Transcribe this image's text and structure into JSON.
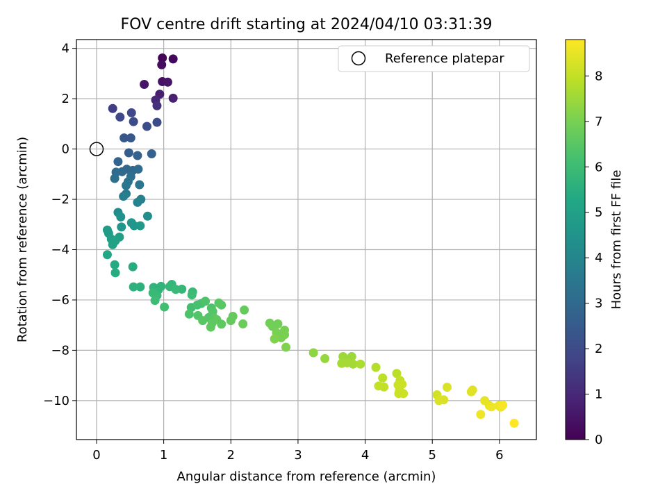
{
  "chart_data": {
    "type": "scatter",
    "title": "FOV centre drift starting at 2024/04/10 03:31:39",
    "xlabel": "Angular distance from reference (arcmin)",
    "ylabel": "Rotation from reference (arcmin)",
    "xlim": [
      -0.3,
      6.55
    ],
    "ylim": [
      -11.55,
      4.35
    ],
    "xticks": [
      0,
      1,
      2,
      3,
      4,
      5,
      6
    ],
    "yticks": [
      4,
      2,
      0,
      -2,
      -4,
      -6,
      -8,
      -10
    ],
    "xtick_labels": [
      "0",
      "1",
      "2",
      "3",
      "4",
      "5",
      "6"
    ],
    "ytick_labels": [
      "4",
      "2",
      "0",
      "−2",
      "−4",
      "−6",
      "−8",
      "−10"
    ],
    "grid": true,
    "legend": {
      "position": "top-right",
      "entries": [
        "Reference platepar"
      ]
    },
    "reference_point": {
      "x": 0,
      "y": 0,
      "label": "Reference platepar"
    },
    "colorbar": {
      "label": "Hours from first FF file",
      "colormap": "viridis",
      "range": [
        0,
        8.8
      ],
      "ticks": [
        0,
        1,
        2,
        3,
        4,
        5,
        6,
        7,
        8
      ],
      "tick_labels": [
        "0",
        "1",
        "2",
        "3",
        "4",
        "5",
        "6",
        "7",
        "8"
      ]
    },
    "points": [
      [
        0.98,
        3.62,
        0.1
      ],
      [
        1.14,
        3.58,
        0.2
      ],
      [
        0.97,
        3.35,
        0.3
      ],
      [
        0.98,
        2.68,
        0.4
      ],
      [
        1.06,
        2.66,
        0.5
      ],
      [
        0.71,
        2.57,
        0.5
      ],
      [
        0.94,
        2.18,
        0.7
      ],
      [
        1.14,
        2.02,
        0.8
      ],
      [
        0.88,
        1.95,
        1.0
      ],
      [
        0.9,
        1.72,
        1.2
      ],
      [
        0.24,
        1.61,
        1.6
      ],
      [
        0.35,
        1.27,
        1.9
      ],
      [
        0.52,
        1.44,
        1.9
      ],
      [
        0.55,
        1.09,
        2.0
      ],
      [
        0.9,
        1.06,
        2.0
      ],
      [
        0.75,
        0.9,
        2.1
      ],
      [
        0.41,
        0.44,
        2.4
      ],
      [
        0.51,
        0.44,
        2.4
      ],
      [
        0.48,
        -0.15,
        2.6
      ],
      [
        0.61,
        -0.26,
        2.7
      ],
      [
        0.82,
        -0.19,
        2.7
      ],
      [
        0.32,
        -0.5,
        2.8
      ],
      [
        0.45,
        -0.8,
        3.0
      ],
      [
        0.38,
        -0.9,
        3.0
      ],
      [
        0.54,
        -0.85,
        3.0
      ],
      [
        0.62,
        -0.8,
        3.1
      ],
      [
        0.29,
        -0.92,
        3.1
      ],
      [
        0.51,
        -1.1,
        3.2
      ],
      [
        0.27,
        -1.17,
        3.2
      ],
      [
        0.47,
        -1.3,
        3.3
      ],
      [
        0.44,
        -1.45,
        3.4
      ],
      [
        0.64,
        -1.42,
        3.4
      ],
      [
        0.44,
        -1.78,
        3.6
      ],
      [
        0.4,
        -1.88,
        3.7
      ],
      [
        0.66,
        -2.0,
        3.8
      ],
      [
        0.61,
        -2.12,
        3.9
      ],
      [
        0.32,
        -2.52,
        4.2
      ],
      [
        0.76,
        -2.67,
        4.3
      ],
      [
        0.36,
        -2.7,
        4.4
      ],
      [
        0.52,
        -2.93,
        4.5
      ],
      [
        0.37,
        -3.1,
        4.6
      ],
      [
        0.56,
        -3.05,
        4.6
      ],
      [
        0.65,
        -3.05,
        4.7
      ],
      [
        0.16,
        -3.22,
        4.8
      ],
      [
        0.18,
        -3.35,
        4.8
      ],
      [
        0.34,
        -3.5,
        4.9
      ],
      [
        0.22,
        -3.58,
        4.9
      ],
      [
        0.28,
        -3.65,
        5.0
      ],
      [
        0.24,
        -3.8,
        5.0
      ],
      [
        0.16,
        -4.2,
        5.2
      ],
      [
        0.27,
        -4.6,
        5.3
      ],
      [
        0.54,
        -4.68,
        5.4
      ],
      [
        0.28,
        -4.92,
        5.4
      ],
      [
        0.55,
        -5.48,
        5.6
      ],
      [
        0.65,
        -5.48,
        5.6
      ],
      [
        0.85,
        -5.5,
        5.7
      ],
      [
        0.96,
        -5.46,
        5.7
      ],
      [
        0.92,
        -5.6,
        5.7
      ],
      [
        1.12,
        -5.38,
        5.8
      ],
      [
        1.09,
        -5.47,
        5.8
      ],
      [
        1.27,
        -5.57,
        5.8
      ],
      [
        1.18,
        -5.58,
        5.9
      ],
      [
        1.43,
        -5.68,
        5.9
      ],
      [
        1.42,
        -5.8,
        6.0
      ],
      [
        0.84,
        -5.72,
        5.9
      ],
      [
        0.9,
        -5.82,
        5.9
      ],
      [
        0.87,
        -6.02,
        6.0
      ],
      [
        1.01,
        -6.28,
        6.1
      ],
      [
        1.41,
        -6.3,
        6.1
      ],
      [
        1.5,
        -6.2,
        6.2
      ],
      [
        1.56,
        -6.14,
        6.2
      ],
      [
        1.62,
        -6.05,
        6.3
      ],
      [
        1.38,
        -6.56,
        6.3
      ],
      [
        1.51,
        -6.62,
        6.4
      ],
      [
        1.71,
        -6.32,
        6.3
      ],
      [
        1.73,
        -6.46,
        6.4
      ],
      [
        1.67,
        -6.7,
        6.4
      ],
      [
        1.82,
        -6.12,
        6.5
      ],
      [
        1.86,
        -6.2,
        6.5
      ],
      [
        1.58,
        -6.82,
        6.5
      ],
      [
        1.75,
        -6.72,
        6.5
      ],
      [
        1.79,
        -6.78,
        6.6
      ],
      [
        1.72,
        -6.92,
        6.6
      ],
      [
        1.7,
        -7.08,
        6.6
      ],
      [
        1.86,
        -6.96,
        6.6
      ],
      [
        2.0,
        -6.82,
        6.7
      ],
      [
        2.03,
        -6.65,
        6.7
      ],
      [
        2.2,
        -6.4,
        6.7
      ],
      [
        2.18,
        -6.95,
        6.8
      ],
      [
        2.58,
        -6.92,
        6.9
      ],
      [
        2.7,
        -6.95,
        6.9
      ],
      [
        2.62,
        -7.05,
        6.9
      ],
      [
        2.68,
        -7.3,
        7.0
      ],
      [
        2.8,
        -7.2,
        7.0
      ],
      [
        2.8,
        -7.38,
        7.0
      ],
      [
        2.75,
        -7.5,
        7.0
      ],
      [
        2.65,
        -7.55,
        7.1
      ],
      [
        2.82,
        -7.88,
        7.1
      ],
      [
        3.23,
        -8.1,
        7.3
      ],
      [
        3.4,
        -8.33,
        7.4
      ],
      [
        3.67,
        -8.25,
        7.5
      ],
      [
        3.8,
        -8.25,
        7.5
      ],
      [
        3.78,
        -8.4,
        7.5
      ],
      [
        3.73,
        -8.5,
        7.6
      ],
      [
        3.65,
        -8.52,
        7.6
      ],
      [
        3.82,
        -8.55,
        7.6
      ],
      [
        3.93,
        -8.55,
        7.7
      ],
      [
        4.16,
        -8.68,
        7.8
      ],
      [
        4.26,
        -9.1,
        7.9
      ],
      [
        4.47,
        -8.92,
        7.9
      ],
      [
        4.2,
        -9.42,
        8.0
      ],
      [
        4.28,
        -9.46,
        8.0
      ],
      [
        4.52,
        -9.2,
        8.0
      ],
      [
        4.55,
        -9.35,
        8.1
      ],
      [
        4.49,
        -9.38,
        8.1
      ],
      [
        4.51,
        -9.6,
        8.1
      ],
      [
        4.5,
        -9.72,
        8.1
      ],
      [
        4.57,
        -9.72,
        8.1
      ],
      [
        5.07,
        -9.77,
        8.2
      ],
      [
        5.1,
        -10.0,
        8.3
      ],
      [
        5.17,
        -9.97,
        8.3
      ],
      [
        5.22,
        -9.47,
        8.3
      ],
      [
        5.6,
        -9.58,
        8.4
      ],
      [
        5.58,
        -9.65,
        8.4
      ],
      [
        5.78,
        -10.0,
        8.5
      ],
      [
        5.85,
        -10.2,
        8.5
      ],
      [
        5.88,
        -10.25,
        8.6
      ],
      [
        5.99,
        -10.2,
        8.6
      ],
      [
        6.02,
        -10.26,
        8.6
      ],
      [
        6.05,
        -10.18,
        8.7
      ],
      [
        5.72,
        -10.55,
        8.6
      ],
      [
        6.22,
        -10.9,
        8.8
      ]
    ]
  }
}
